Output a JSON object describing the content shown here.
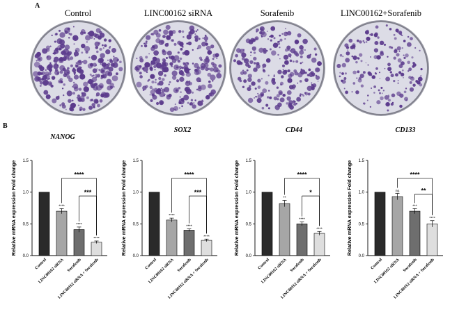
{
  "panel_a": {
    "label": "A",
    "plates": [
      {
        "title": "Control",
        "density": 1.0
      },
      {
        "title": "LINC00162 siRNA",
        "density": 0.9
      },
      {
        "title": "Sorafenib",
        "density": 0.7
      },
      {
        "title": "LINC00162+Sorafenib",
        "density": 0.5
      }
    ],
    "colors": {
      "stain": "#5b3a8c",
      "plate_bg": "#dcdce6",
      "rim": "#9a9aa6"
    }
  },
  "panel_b": {
    "label": "B"
  },
  "chart_data": [
    {
      "type": "bar",
      "title": "NANOG",
      "ylabel": "Relative mRNA expression Fold change",
      "categories": [
        "Control",
        "LINC00162 siRNA",
        "Sorafenib",
        "LINC00162 siRNA + Sorafenib"
      ],
      "values": [
        1.0,
        0.7,
        0.41,
        0.21
      ],
      "errors": [
        0.0,
        0.04,
        0.04,
        0.02
      ],
      "significance": [
        "",
        "****",
        "****",
        "****"
      ],
      "ylim": [
        0.0,
        1.5
      ],
      "yticks": [
        "0.0",
        "0.5",
        "1.0",
        "1.5"
      ],
      "brackets": [
        {
          "from": 1,
          "to": 3,
          "label": "****"
        },
        {
          "from": 2,
          "to": 3,
          "label": "***"
        }
      ]
    },
    {
      "type": "bar",
      "title": "SOX2",
      "ylabel": "Relative mRNA expression Fold change",
      "categories": [
        "Control",
        "LINC00162 siRNA",
        "Sorafenib",
        "LINC00162 siRNA + Sorafenib"
      ],
      "values": [
        1.0,
        0.56,
        0.4,
        0.24
      ],
      "errors": [
        0.0,
        0.03,
        0.02,
        0.02
      ],
      "significance": [
        "",
        "****",
        "****",
        "****"
      ],
      "ylim": [
        0.0,
        1.5
      ],
      "yticks": [
        "0.0",
        "0.5",
        "1.0",
        "1.5"
      ],
      "brackets": [
        {
          "from": 1,
          "to": 3,
          "label": "****"
        },
        {
          "from": 2,
          "to": 3,
          "label": "***"
        }
      ]
    },
    {
      "type": "bar",
      "title": "CD44",
      "ylabel": "Relative mRNA expression Fold change",
      "categories": [
        "Control",
        "LINC00162 siRNA",
        "Sorafenib",
        "LINC00162 siRNA + Sorafenib"
      ],
      "values": [
        1.0,
        0.82,
        0.5,
        0.35
      ],
      "errors": [
        0.0,
        0.05,
        0.03,
        0.03
      ],
      "significance": [
        "",
        "**",
        "****",
        "****"
      ],
      "ylim": [
        0.0,
        1.5
      ],
      "yticks": [
        "0.0",
        "0.5",
        "1.0",
        "1.5"
      ],
      "brackets": [
        {
          "from": 1,
          "to": 3,
          "label": "****"
        },
        {
          "from": 2,
          "to": 3,
          "label": "*"
        }
      ]
    },
    {
      "type": "bar",
      "title": "CD133",
      "ylabel": "Relative mRNA expression Fold change",
      "categories": [
        "Control",
        "LINC00162 siRNA",
        "Sorafenib",
        "LINC00162 siRNA + Sorafenib"
      ],
      "values": [
        1.0,
        0.93,
        0.7,
        0.5
      ],
      "errors": [
        0.0,
        0.05,
        0.04,
        0.05
      ],
      "significance": [
        "",
        "ns",
        "***",
        "****"
      ],
      "ylim": [
        0.0,
        1.5
      ],
      "yticks": [
        "0.0",
        "0.5",
        "1.0",
        "1.5"
      ],
      "brackets": [
        {
          "from": 1,
          "to": 3,
          "label": "****"
        },
        {
          "from": 2,
          "to": 3,
          "label": "**"
        }
      ]
    }
  ],
  "colors": {
    "bars": [
      "#2a2a2a",
      "#a6a6a6",
      "#6e6e6e",
      "#dedede"
    ],
    "axis": "#000000"
  }
}
